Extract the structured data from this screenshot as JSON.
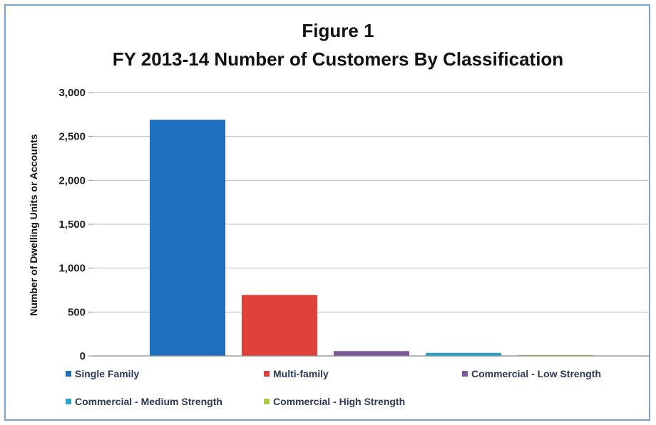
{
  "chart_data": {
    "type": "bar",
    "title": "Figure 1",
    "subtitle": "FY 2013-14 Number of Customers By Classification",
    "xlabel": "",
    "ylabel": "Number of Dwelling Units or Accounts",
    "ylim": [
      0,
      3000
    ],
    "yticks": [
      0,
      500,
      1000,
      1500,
      2000,
      2500,
      3000
    ],
    "ytick_labels": [
      "0",
      "500",
      "1,000",
      "1,500",
      "2,000",
      "2,500",
      "3,000"
    ],
    "grid": true,
    "legend_position": "bottom",
    "series": [
      {
        "name": "Single Family",
        "value": 2690,
        "color": "#1f6fbf"
      },
      {
        "name": "Multi-family",
        "value": 695,
        "color": "#e0413a"
      },
      {
        "name": "Commercial - Low Strength",
        "value": 55,
        "color": "#7d5a9b"
      },
      {
        "name": "Commercial - Medium Strength",
        "value": 35,
        "color": "#2aa3c9"
      },
      {
        "name": "Commercial - High Strength",
        "value": 10,
        "color": "#a6c94a"
      }
    ]
  }
}
